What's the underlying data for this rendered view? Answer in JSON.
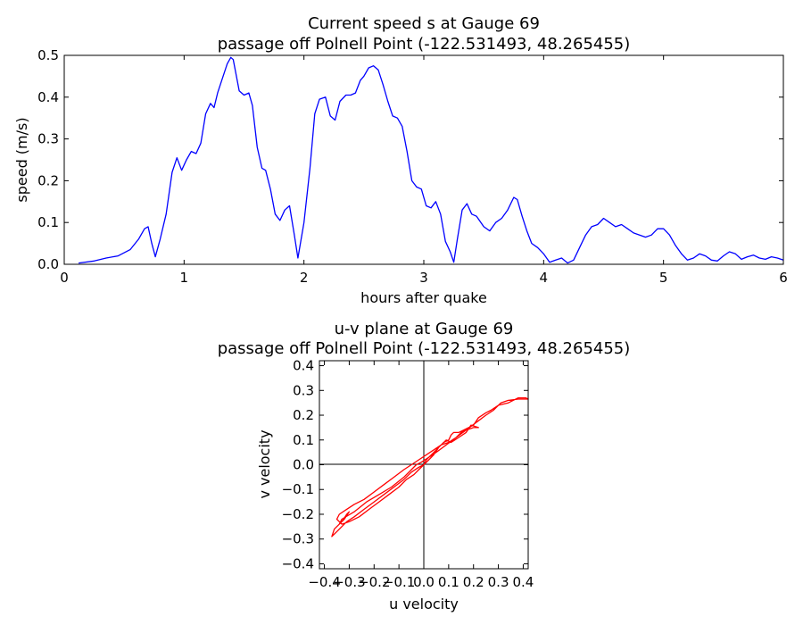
{
  "chart_data": [
    {
      "type": "line",
      "title": [
        "Current speed s at Gauge 69",
        "passage off Polnell Point  (-122.531493, 48.265455)"
      ],
      "xlabel": "hours after quake",
      "ylabel": "speed (m/s)",
      "xlim": [
        0,
        6
      ],
      "ylim": [
        0.0,
        0.5
      ],
      "xticks": [
        "0",
        "1",
        "2",
        "3",
        "4",
        "5",
        "6"
      ],
      "yticks": [
        "0.0",
        "0.1",
        "0.2",
        "0.3",
        "0.4",
        "0.5"
      ],
      "grid": false,
      "series": [
        {
          "color": "#0000ff",
          "x": [
            0.12,
            0.25,
            0.35,
            0.45,
            0.55,
            0.62,
            0.67,
            0.7,
            0.73,
            0.76,
            0.8,
            0.85,
            0.9,
            0.94,
            0.98,
            1.02,
            1.06,
            1.1,
            1.14,
            1.18,
            1.22,
            1.25,
            1.28,
            1.32,
            1.36,
            1.39,
            1.41,
            1.43,
            1.46,
            1.5,
            1.54,
            1.57,
            1.61,
            1.65,
            1.68,
            1.72,
            1.76,
            1.8,
            1.84,
            1.88,
            1.92,
            1.95,
            2.0,
            2.05,
            2.09,
            2.13,
            2.18,
            2.22,
            2.26,
            2.3,
            2.35,
            2.39,
            2.43,
            2.47,
            2.5,
            2.54,
            2.58,
            2.62,
            2.66,
            2.7,
            2.74,
            2.78,
            2.82,
            2.86,
            2.9,
            2.94,
            2.98,
            3.02,
            3.06,
            3.1,
            3.14,
            3.18,
            3.22,
            3.25,
            3.28,
            3.32,
            3.36,
            3.4,
            3.44,
            3.5,
            3.55,
            3.6,
            3.65,
            3.7,
            3.75,
            3.78,
            3.82,
            3.86,
            3.9,
            3.95,
            4.0,
            4.05,
            4.1,
            4.15,
            4.2,
            4.25,
            4.3,
            4.35,
            4.4,
            4.45,
            4.5,
            4.55,
            4.6,
            4.65,
            4.7,
            4.75,
            4.8,
            4.85,
            4.9,
            4.95,
            5.0,
            5.05,
            5.1,
            5.15,
            5.2,
            5.25,
            5.3,
            5.35,
            5.4,
            5.45,
            5.5,
            5.55,
            5.6,
            5.65,
            5.7,
            5.75,
            5.8,
            5.85,
            5.9,
            5.95,
            6.0
          ],
          "y": [
            0.003,
            0.008,
            0.015,
            0.02,
            0.035,
            0.06,
            0.085,
            0.09,
            0.05,
            0.018,
            0.06,
            0.12,
            0.22,
            0.255,
            0.225,
            0.25,
            0.27,
            0.265,
            0.29,
            0.36,
            0.385,
            0.375,
            0.41,
            0.445,
            0.48,
            0.495,
            0.49,
            0.46,
            0.415,
            0.405,
            0.41,
            0.38,
            0.28,
            0.23,
            0.225,
            0.18,
            0.12,
            0.105,
            0.13,
            0.14,
            0.07,
            0.015,
            0.1,
            0.23,
            0.36,
            0.395,
            0.4,
            0.355,
            0.345,
            0.39,
            0.405,
            0.405,
            0.41,
            0.44,
            0.45,
            0.47,
            0.475,
            0.465,
            0.43,
            0.39,
            0.355,
            0.35,
            0.33,
            0.27,
            0.2,
            0.185,
            0.18,
            0.14,
            0.135,
            0.15,
            0.12,
            0.055,
            0.03,
            0.005,
            0.06,
            0.13,
            0.145,
            0.12,
            0.115,
            0.09,
            0.08,
            0.1,
            0.11,
            0.13,
            0.16,
            0.155,
            0.115,
            0.08,
            0.05,
            0.04,
            0.025,
            0.005,
            0.01,
            0.015,
            0.003,
            0.01,
            0.04,
            0.07,
            0.09,
            0.095,
            0.11,
            0.1,
            0.09,
            0.095,
            0.085,
            0.075,
            0.07,
            0.065,
            0.07,
            0.085,
            0.085,
            0.07,
            0.045,
            0.025,
            0.01,
            0.015,
            0.025,
            0.02,
            0.01,
            0.008,
            0.02,
            0.03,
            0.025,
            0.012,
            0.018,
            0.022,
            0.015,
            0.012,
            0.018,
            0.015,
            0.01
          ]
        }
      ]
    },
    {
      "type": "line",
      "title": [
        "u-v plane at Gauge 69",
        "passage off Polnell Point  (-122.531493, 48.265455)"
      ],
      "xlabel": "u velocity",
      "ylabel": "v velocity",
      "xlim": [
        -0.42,
        0.42
      ],
      "ylim": [
        -0.42,
        0.42
      ],
      "xticks": [
        "−0.4",
        "−0.3",
        "−0.2",
        "−0.1",
        "0.0",
        "0.1",
        "0.2",
        "0.3",
        "0.4"
      ],
      "yticks": [
        "−0.4",
        "−0.3",
        "−0.2",
        "−0.1",
        "0.0",
        "0.1",
        "0.2",
        "0.3",
        "0.4"
      ],
      "grid": false,
      "series": [
        {
          "color": "#ff0000",
          "x": [
            0,
            -0.02,
            -0.05,
            -0.08,
            -0.12,
            -0.16,
            -0.2,
            -0.24,
            -0.28,
            -0.31,
            -0.33,
            -0.35,
            -0.37,
            -0.36,
            -0.33,
            -0.31,
            -0.3,
            -0.32,
            -0.34,
            -0.33,
            -0.28,
            -0.23,
            -0.18,
            -0.13,
            -0.08,
            -0.05,
            -0.03,
            -0.01,
            0.02,
            0.05,
            0.09,
            0.13,
            0.17,
            0.21,
            0.25,
            0.28,
            0.31,
            0.34,
            0.38,
            0.42,
            0.41,
            0.38,
            0.34,
            0.3,
            0.27,
            0.25,
            0.22,
            0.2,
            0.18,
            0.16,
            0.14,
            0.12,
            0.11,
            0.1,
            0.08,
            0.06,
            0.04,
            0.02,
            0,
            -0.02,
            -0.04,
            -0.07,
            -0.1,
            -0.14,
            -0.18,
            -0.22,
            -0.26,
            -0.3,
            -0.33,
            -0.35,
            -0.34,
            -0.31,
            -0.28,
            -0.24,
            -0.2,
            -0.16,
            -0.12,
            -0.08,
            -0.05,
            -0.02,
            0.01,
            0.04,
            0.07,
            0.1,
            0.13,
            0.15,
            0.17,
            0.2,
            0.22,
            0.19,
            0.17,
            0.14,
            0.11,
            0.09,
            0.07,
            0.05,
            0.03,
            0.01,
            0
          ],
          "y": [
            0,
            -0.01,
            -0.03,
            -0.06,
            -0.09,
            -0.12,
            -0.15,
            -0.18,
            -0.21,
            -0.23,
            -0.25,
            -0.27,
            -0.29,
            -0.26,
            -0.23,
            -0.2,
            -0.19,
            -0.22,
            -0.24,
            -0.22,
            -0.19,
            -0.15,
            -0.12,
            -0.09,
            -0.05,
            -0.02,
            0,
            0.01,
            0.03,
            0.05,
            0.08,
            0.11,
            0.14,
            0.17,
            0.2,
            0.22,
            0.25,
            0.26,
            0.265,
            0.265,
            0.27,
            0.27,
            0.25,
            0.24,
            0.22,
            0.21,
            0.19,
            0.16,
            0.15,
            0.14,
            0.13,
            0.13,
            0.12,
            0.1,
            0.09,
            0.07,
            0.04,
            0.02,
            0,
            -0.02,
            -0.04,
            -0.06,
            -0.09,
            -0.12,
            -0.15,
            -0.18,
            -0.21,
            -0.23,
            -0.24,
            -0.22,
            -0.2,
            -0.18,
            -0.16,
            -0.14,
            -0.11,
            -0.08,
            -0.05,
            -0.02,
            0,
            0.02,
            0.04,
            0.06,
            0.08,
            0.09,
            0.11,
            0.13,
            0.14,
            0.15,
            0.15,
            0.16,
            0.13,
            0.11,
            0.09,
            0.1,
            0.08,
            0.06,
            0.04,
            0.02,
            0
          ]
        }
      ]
    }
  ]
}
